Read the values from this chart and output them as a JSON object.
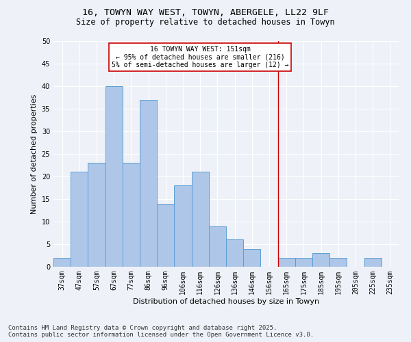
{
  "title1": "16, TOWYN WAY WEST, TOWYN, ABERGELE, LL22 9LF",
  "title2": "Size of property relative to detached houses in Towyn",
  "xlabel": "Distribution of detached houses by size in Towyn",
  "ylabel": "Number of detached properties",
  "categories": [
    "37sqm",
    "47sqm",
    "57sqm",
    "67sqm",
    "77sqm",
    "86sqm",
    "96sqm",
    "106sqm",
    "116sqm",
    "126sqm",
    "136sqm",
    "146sqm",
    "156sqm",
    "165sqm",
    "175sqm",
    "185sqm",
    "195sqm",
    "205sqm",
    "225sqm",
    "235sqm"
  ],
  "values": [
    2,
    21,
    23,
    40,
    23,
    37,
    14,
    18,
    21,
    9,
    6,
    4,
    0,
    2,
    2,
    3,
    2,
    0,
    2,
    0
  ],
  "bar_color": "#aec6e8",
  "bar_edge_color": "#5a9fd4",
  "vline_index": 12.5,
  "vline_color": "#cc0000",
  "annotation_title": "16 TOWYN WAY WEST: 151sqm",
  "annotation_line1": "← 95% of detached houses are smaller (216)",
  "annotation_line2": "5% of semi-detached houses are larger (12) →",
  "annotation_box_color": "#cc0000",
  "ylim": [
    0,
    50
  ],
  "yticks": [
    0,
    5,
    10,
    15,
    20,
    25,
    30,
    35,
    40,
    45,
    50
  ],
  "footer": "Contains HM Land Registry data © Crown copyright and database right 2025.\nContains public sector information licensed under the Open Government Licence v3.0.",
  "background_color": "#eef2f8",
  "grid_color": "#ffffff",
  "title_fontsize": 9.5,
  "subtitle_fontsize": 8.5,
  "axis_label_fontsize": 8,
  "tick_fontsize": 7,
  "footer_fontsize": 6.5,
  "annotation_fontsize": 7
}
